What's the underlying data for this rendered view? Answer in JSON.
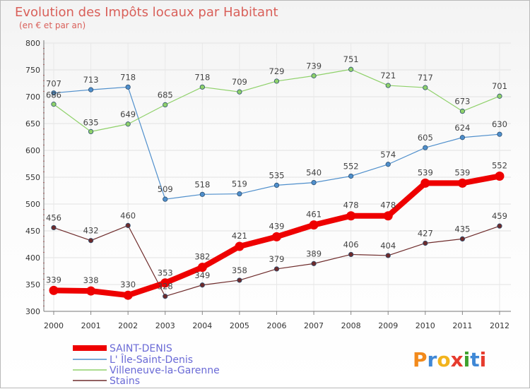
{
  "chart_data": {
    "type": "line",
    "title": "Evolution des Impôts locaux par Habitant",
    "subtitle": "(en € et par an)",
    "xlabel": "",
    "ylabel": "",
    "ylim": [
      300,
      800
    ],
    "y_ticks": [
      "300",
      "350",
      "400",
      "450",
      "500",
      "550",
      "600",
      "650",
      "700",
      "750",
      "800"
    ],
    "grid": true,
    "legend_position": "bottom-left",
    "categories": [
      "2000",
      "2001",
      "2002",
      "2003",
      "2004",
      "2005",
      "2006",
      "2007",
      "2008",
      "2009",
      "2010",
      "2011",
      "2012"
    ],
    "series": [
      {
        "name": "Stains",
        "color": "#6e2b2b",
        "emphasis": false,
        "values": [
          456,
          432,
          460,
          328,
          349,
          358,
          379,
          389,
          406,
          404,
          427,
          435,
          459
        ]
      },
      {
        "name": "L' Île-Saint-Denis",
        "color": "#4f8fcc",
        "emphasis": false,
        "values": [
          707,
          713,
          718,
          509,
          518,
          519,
          535,
          540,
          552,
          574,
          605,
          624,
          630
        ]
      },
      {
        "name": "Villeneuve-la-Garenne",
        "color": "#8fd16a",
        "emphasis": false,
        "values": [
          686,
          635,
          649,
          685,
          718,
          709,
          729,
          739,
          751,
          721,
          717,
          673,
          701
        ]
      },
      {
        "name": "SAINT-DENIS",
        "color": "#ee0000",
        "emphasis": true,
        "values": [
          339,
          338,
          330,
          353,
          382,
          421,
          439,
          461,
          478,
          478,
          539,
          539,
          552
        ]
      }
    ],
    "legend_order": [
      "SAINT-DENIS",
      "L' Île-Saint-Denis",
      "Villeneuve-la-Garenne",
      "Stains"
    ]
  },
  "logo": {
    "text": "Proxiti"
  }
}
